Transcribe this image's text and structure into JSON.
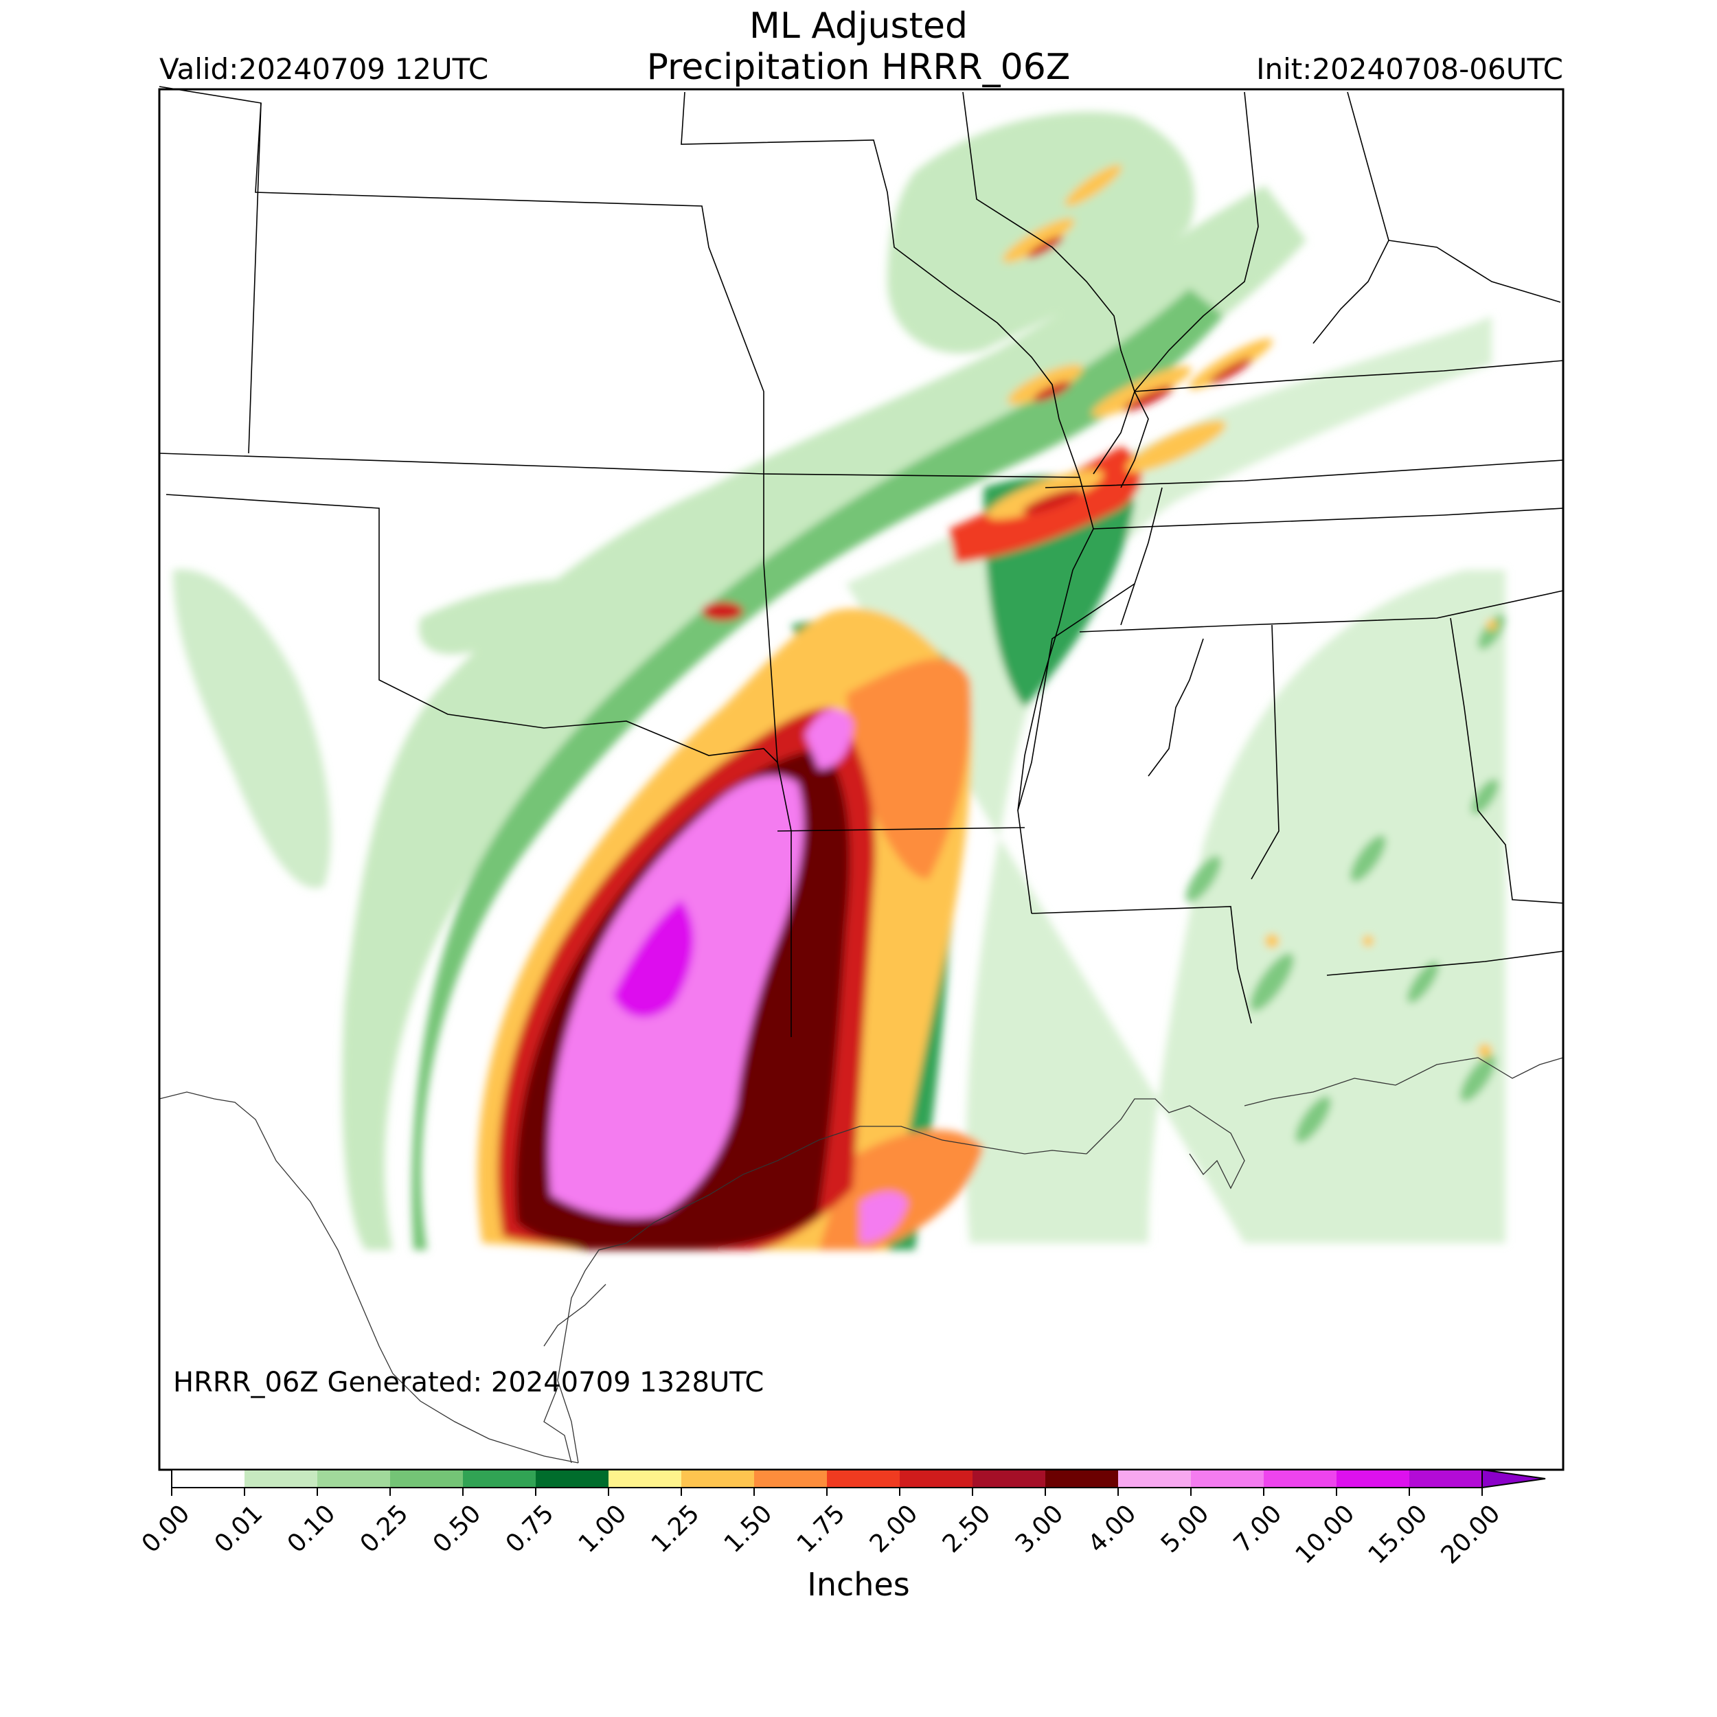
{
  "header": {
    "title_line1": "ML Adjusted",
    "title_line2": "Precipitation HRRR_06Z",
    "valid": "Valid:20240709 12UTC",
    "init": "Init:20240708-06UTC"
  },
  "map": {
    "generated": "HRRR_06Z Generated: 20240709 1328UTC"
  },
  "colorbar": {
    "label": "Inches",
    "ticks": [
      "0.00",
      "0.01",
      "0.10",
      "0.25",
      "0.50",
      "0.75",
      "1.00",
      "1.25",
      "1.50",
      "1.75",
      "2.00",
      "2.50",
      "3.00",
      "4.00",
      "5.00",
      "7.00",
      "10.00",
      "15.00",
      "20.00"
    ],
    "colors": [
      "#ffffff",
      "#c7e9c0",
      "#a1d99b",
      "#74c476",
      "#31a354",
      "#006d2c",
      "#fff38c",
      "#fec44f",
      "#fd8d3c",
      "#f03b20",
      "#d01c1c",
      "#a50f27",
      "#6b0000",
      "#f7a8f0",
      "#f47cf0",
      "#ee44ee",
      "#dd11ee",
      "#b30bd6",
      "#8b00c9"
    ]
  }
}
